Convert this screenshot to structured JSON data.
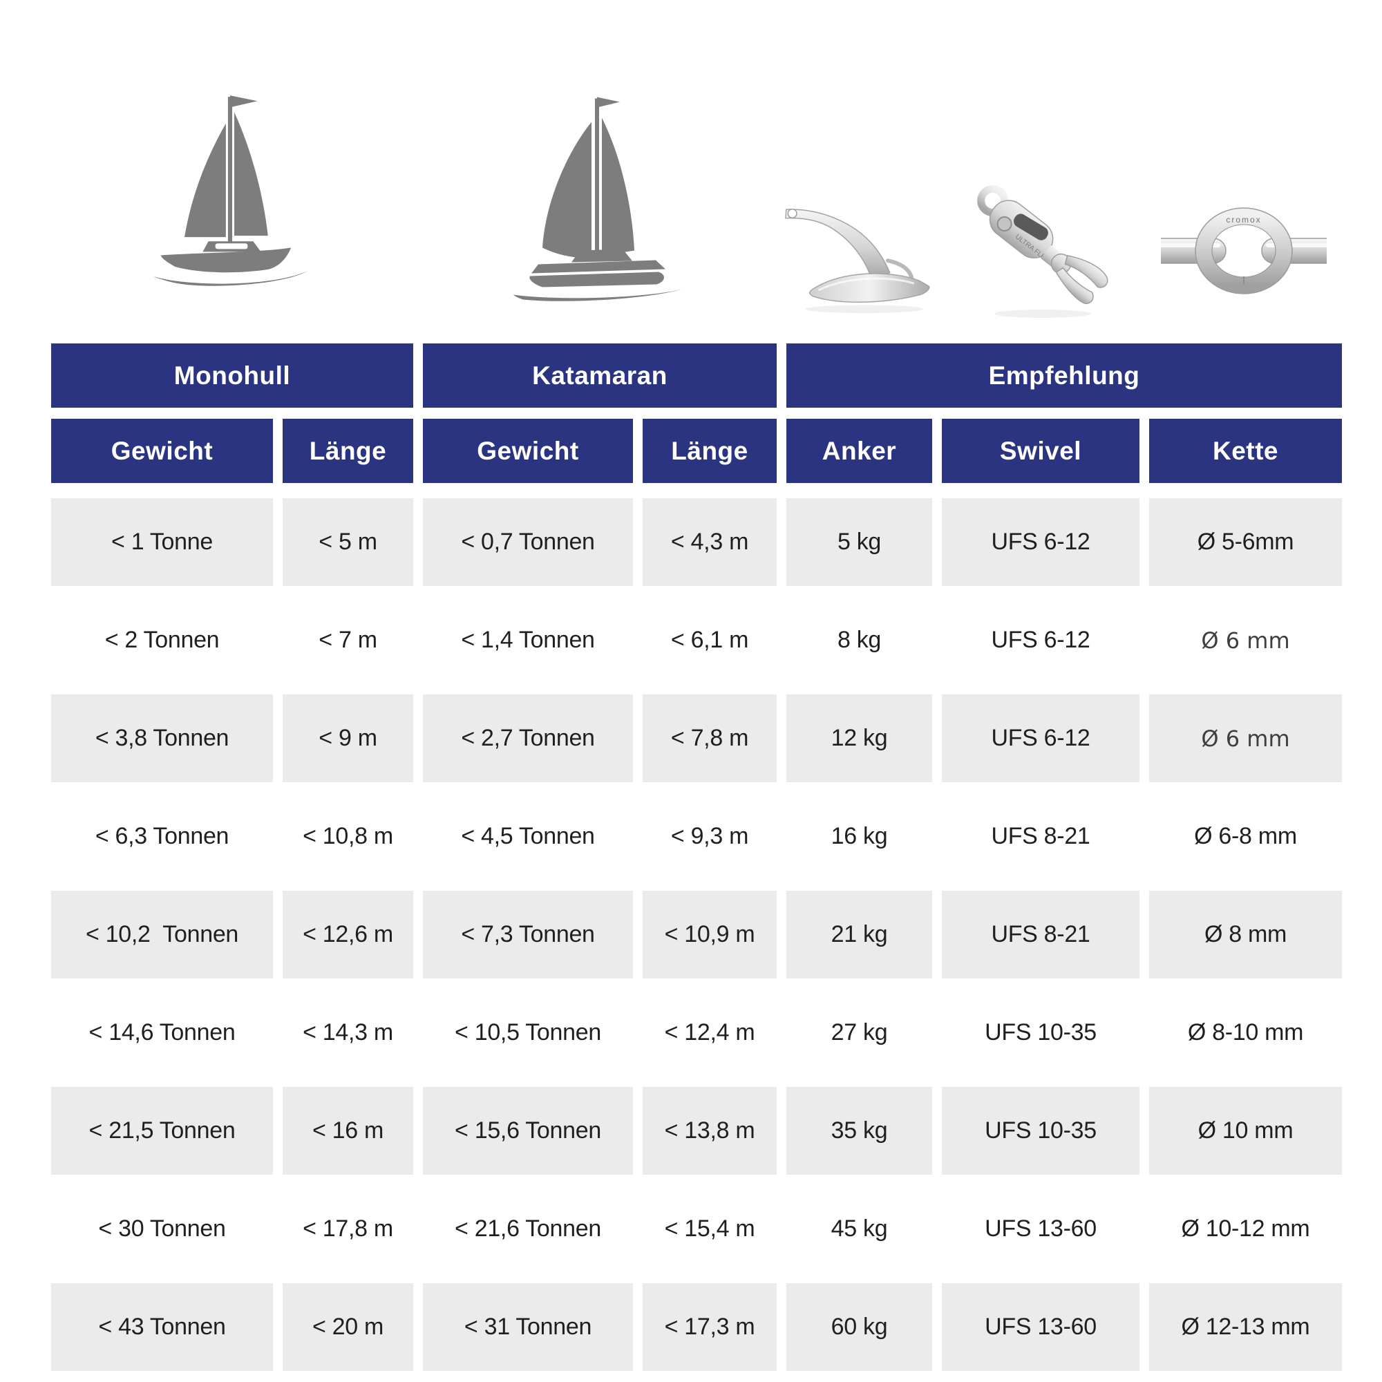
{
  "colors": {
    "header_blue": "#2b3480",
    "row_gray": "#ebebeb",
    "icon_gray": "#7d7d7d",
    "text_dark": "#1f1f1f",
    "text_muted": "#3f3f3f"
  },
  "icons": {
    "monohull": "sailboat-silhouette-icon",
    "katamaran": "catamaran-silhouette-icon",
    "anker": "anchor-photo-icon",
    "swivel": "swivel-connector-photo-icon",
    "kette": "chain-links-photo-icon",
    "swivel_engraving": "ULTRA FLIP SWIVEL",
    "chain_engraving": "cromox"
  },
  "table": {
    "groups": [
      {
        "label": "Monohull",
        "span": 2
      },
      {
        "label": "Katamaran",
        "span": 2
      },
      {
        "label": "Empfehlung",
        "span": 3
      }
    ],
    "columns": [
      "Gewicht",
      "Länge",
      "Gewicht",
      "Länge",
      "Anker",
      "Swivel",
      "Kette"
    ],
    "rows": [
      [
        "< 1 Tonne",
        "< 5 m",
        "< 0,7 Tonnen",
        "< 4,3 m",
        "5 kg",
        "UFS 6-12",
        "Ø 5-6mm"
      ],
      [
        "< 2 Tonnen",
        "< 7 m",
        "< 1,4 Tonnen",
        "< 6,1 m",
        "8 kg",
        "UFS 6-12",
        "Ø 6 mm"
      ],
      [
        "< 3,8 Tonnen",
        "< 9 m",
        "< 2,7 Tonnen",
        "< 7,8 m",
        "12 kg",
        "UFS 6-12",
        "Ø 6 mm"
      ],
      [
        "< 6,3 Tonnen",
        "< 10,8 m",
        "< 4,5 Tonnen",
        "< 9,3 m",
        "16 kg",
        "UFS 8-21",
        "Ø 6-8 mm"
      ],
      [
        "< 10,2  Tonnen",
        "< 12,6 m",
        "< 7,3 Tonnen",
        "< 10,9 m",
        "21 kg",
        "UFS 8-21",
        "Ø 8 mm"
      ],
      [
        "< 14,6 Tonnen",
        "< 14,3 m",
        "< 10,5 Tonnen",
        "< 12,4 m",
        "27 kg",
        "UFS 10-35",
        "Ø 8-10 mm"
      ],
      [
        "< 21,5 Tonnen",
        "< 16 m",
        "< 15,6 Tonnen",
        "< 13,8 m",
        "35 kg",
        "UFS 10-35",
        "Ø 10 mm"
      ],
      [
        "< 30 Tonnen",
        "< 17,8 m",
        "< 21,6 Tonnen",
        "< 15,4 m",
        "45 kg",
        "UFS 13-60",
        "Ø 10-12 mm"
      ],
      [
        "< 43 Tonnen",
        "< 20 m",
        "< 31 Tonnen",
        "< 17,3 m",
        "60 kg",
        "UFS 13-60",
        "Ø 12-13 mm"
      ]
    ],
    "muted_cells": [
      [
        1,
        6
      ],
      [
        2,
        6
      ]
    ]
  }
}
